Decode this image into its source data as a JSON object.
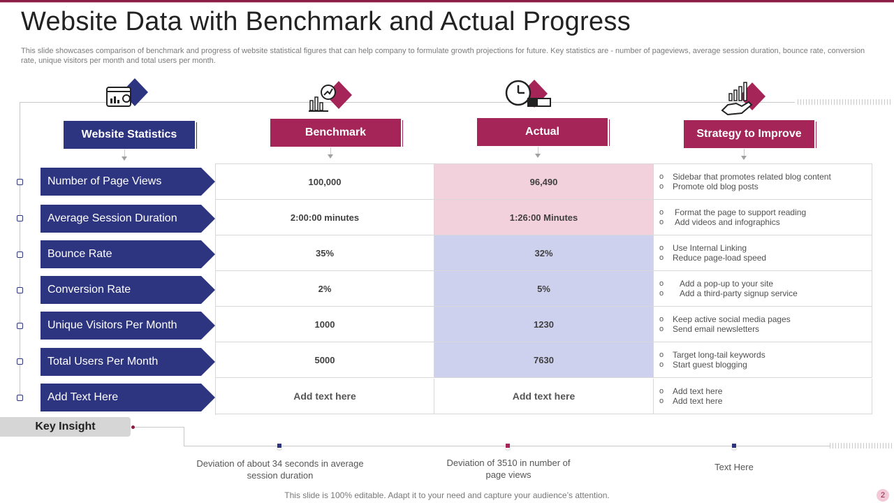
{
  "title": "Website Data with Benchmark and Actual Progress",
  "subtitle": "This slide showcases comparison of benchmark and progress of website statistical figures that can help company to formulate growth projections for future. Key statistics are - number of pageviews, average session duration, bounce rate, conversion rate, unique visitors per month and total users per month.",
  "columns": [
    {
      "label": "Website Statistics",
      "color": "#2e3580",
      "icon": "dashboard-icon"
    },
    {
      "label": "Benchmark",
      "color": "#a52559",
      "icon": "growth-chart-icon"
    },
    {
      "label": "Actual",
      "color": "#a52559",
      "icon": "clock-icon"
    },
    {
      "label": "Strategy to Improve",
      "color": "#a52559",
      "icon": "hand-chart-icon"
    }
  ],
  "rows": [
    {
      "label": "Number of Page Views",
      "benchmark": "100,000",
      "actual": "96,490",
      "strategy": [
        "Sidebar that promotes related blog content",
        "Promote old blog posts"
      ]
    },
    {
      "label": "Average Session Duration",
      "benchmark": "2:00:00  minutes",
      "actual": "1:26:00  Minutes",
      "strategy": [
        "Format the page to support reading",
        "Add videos and infographics"
      ]
    },
    {
      "label": "Bounce Rate",
      "benchmark": "35%",
      "actual": "32%",
      "strategy": [
        "Use Internal Linking",
        "Reduce page-load speed"
      ]
    },
    {
      "label": "Conversion Rate",
      "benchmark": "2%",
      "actual": "5%",
      "strategy": [
        "Add a pop-up to your site",
        "Add a third-party signup service"
      ]
    },
    {
      "label": "Unique Visitors Per Month",
      "benchmark": "1000",
      "actual": "1230",
      "strategy": [
        "Keep active social media pages",
        "Send email newsletters"
      ]
    },
    {
      "label": "Total Users Per Month",
      "benchmark": "5000",
      "actual": "7630",
      "strategy": [
        "Target long-tail keywords",
        "Start guest blogging"
      ]
    },
    {
      "label": "Add Text Here",
      "benchmark": "Add text here",
      "actual": "Add text here",
      "strategy": [
        "Add text here",
        "Add text here"
      ]
    }
  ],
  "key_insight": {
    "label": "Key Insight",
    "notes": [
      "Deviation  of about 34 seconds in average  session duration",
      "Deviation  of 3510 in number of page views",
      "Text Here"
    ]
  },
  "footer": "This slide is 100% editable. Adapt it to your need and capture your audience’s attention.",
  "page_number": "2",
  "colors": {
    "navy": "#2e3580",
    "maroon": "#a52559",
    "pink_cell": "#f2d0dc",
    "lavender_cell": "#cdd1ee"
  }
}
